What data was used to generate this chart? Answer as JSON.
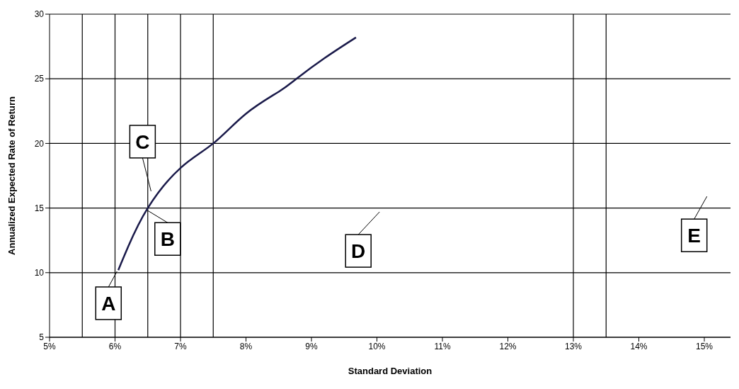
{
  "chart_data": {
    "type": "line",
    "xlabel": "Standard Deviation",
    "ylabel": "Annualized Expected Rate of Return",
    "series": [
      {
        "color": "#1a1a4a",
        "x": [
          6.05,
          6.2,
          6.5,
          7,
          7.5,
          8,
          8.5,
          8.77,
          9.2,
          9.68
        ],
        "values": [
          10.2,
          12,
          15,
          18.1,
          20,
          22.3,
          24,
          25,
          26.6,
          28.2
        ]
      }
    ],
    "xlim": [
      5,
      15.4
    ],
    "ylim": [
      5,
      30
    ],
    "xticks": [
      {
        "value": 5,
        "label": "5%"
      },
      {
        "value": 6,
        "label": "6%"
      },
      {
        "value": 7,
        "label": "7%"
      },
      {
        "value": 8,
        "label": "8%"
      },
      {
        "value": 9,
        "label": "9%"
      },
      {
        "value": 10,
        "label": "10%"
      },
      {
        "value": 11,
        "label": "11%"
      },
      {
        "value": 12,
        "label": "12%"
      },
      {
        "value": 13,
        "label": "13%"
      },
      {
        "value": 14,
        "label": "14%"
      },
      {
        "value": 15,
        "label": "15%"
      }
    ],
    "yticks": [
      5,
      10,
      15,
      20,
      25,
      30
    ],
    "grid": "y",
    "marker": "none",
    "line_style": "solid",
    "legend": false,
    "ref_lines": [
      {
        "axis": "x",
        "value": 5.5,
        "label": null,
        "color": "#000000"
      },
      {
        "axis": "x",
        "value": 6,
        "label": null,
        "color": "#000000"
      },
      {
        "axis": "x",
        "value": 6.5,
        "label": null,
        "color": "#000000"
      },
      {
        "axis": "x",
        "value": 7,
        "label": null,
        "color": "#000000"
      },
      {
        "axis": "x",
        "value": 7.5,
        "label": null,
        "color": "#000000"
      },
      {
        "axis": "x",
        "value": 13,
        "label": null,
        "color": "#000000"
      },
      {
        "axis": "x",
        "value": 13.5,
        "label": null,
        "color": "#000000"
      }
    ],
    "annotations": [
      {
        "text": "A",
        "x": 6.03,
        "y": 10.1
      },
      {
        "text": "B",
        "x": 6.5,
        "y": 14.8
      },
      {
        "text": "C",
        "x": 6.55,
        "y": 16.3
      },
      "D",
      "E"
    ]
  }
}
